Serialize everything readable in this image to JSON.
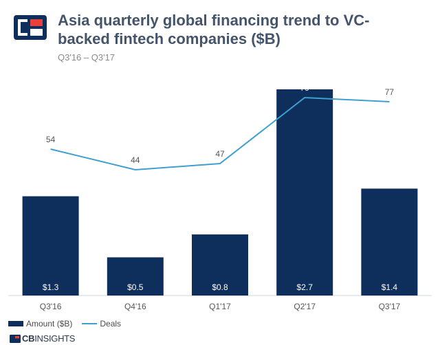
{
  "header": {
    "title": "Asia quarterly global financing trend to VC-backed fintech companies ($B)",
    "subtitle": "Q3'16 – Q3'17"
  },
  "colors": {
    "bar": "#0e2e5c",
    "line": "#3fa0d0",
    "logo_blue": "#0e2e5c",
    "logo_red": "#e8413b"
  },
  "legend": {
    "amount_label": "Amount ($B)",
    "deals_label": "Deals"
  },
  "footer": {
    "brand_bold": "CB",
    "brand_rest": "INSIGHTS"
  },
  "chart_data": {
    "type": "bar",
    "categories": [
      "Q3'16",
      "Q4'16",
      "Q1'17",
      "Q2'17",
      "Q3'17"
    ],
    "series": [
      {
        "name": "Amount ($B)",
        "type": "bar",
        "values": [
          1.3,
          0.5,
          0.8,
          2.7,
          1.4
        ],
        "labels": [
          "$1.3",
          "$0.5",
          "$0.8",
          "$2.7",
          "$1.4"
        ]
      },
      {
        "name": "Deals",
        "type": "line",
        "values": [
          54,
          44,
          47,
          79,
          77
        ]
      }
    ],
    "title": "Asia quarterly global financing trend to VC-backed fintech companies ($B)",
    "subtitle": "Q3'16 – Q3'17",
    "legend": "bottom-left",
    "grid": false
  }
}
